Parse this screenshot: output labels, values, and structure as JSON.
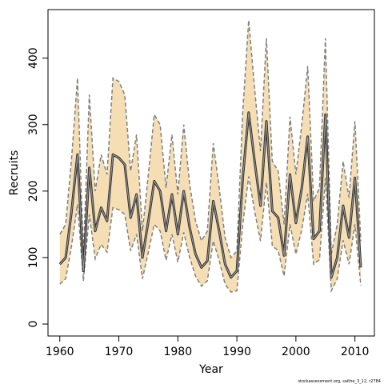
{
  "chart_data": {
    "type": "line",
    "xlabel": "Year",
    "ylabel": "Recruits",
    "footnote": "stockassessment.org, saithe_3_12, r2784",
    "xlim": [
      1958,
      2013.3
    ],
    "ylim": [
      -18,
      473
    ],
    "xticks": [
      1960,
      1970,
      1980,
      1990,
      2000,
      2010
    ],
    "yticks": [
      0,
      100,
      200,
      300,
      400
    ],
    "grid": false,
    "colors": {
      "band": "#f5deb3",
      "band_edge": "#808080",
      "line": "#333333",
      "axis": "#000000"
    },
    "x": [
      1960,
      1961,
      1962,
      1963,
      1964,
      1965,
      1966,
      1967,
      1968,
      1969,
      1970,
      1971,
      1972,
      1973,
      1974,
      1975,
      1976,
      1977,
      1978,
      1979,
      1980,
      1981,
      1982,
      1983,
      1984,
      1985,
      1986,
      1987,
      1988,
      1989,
      1990,
      1991,
      1992,
      1993,
      1994,
      1995,
      1996,
      1997,
      1998,
      1999,
      2000,
      2001,
      2002,
      2003,
      2004,
      2005,
      2006,
      2007,
      2008,
      2009,
      2010,
      2011
    ],
    "series": [
      {
        "values": [
          90,
          100,
          170,
          255,
          80,
          235,
          140,
          175,
          155,
          255,
          250,
          240,
          160,
          195,
          100,
          155,
          215,
          200,
          140,
          195,
          135,
          200,
          145,
          105,
          85,
          95,
          185,
          140,
          90,
          70,
          80,
          220,
          318,
          245,
          178,
          305,
          170,
          160,
          103,
          225,
          152,
          205,
          282,
          128,
          140,
          315,
          70,
          100,
          178,
          130,
          220,
          85
        ]
      },
      {
        "values": [
          135,
          150,
          250,
          370,
          105,
          345,
          200,
          255,
          225,
          370,
          365,
          345,
          230,
          285,
          140,
          225,
          315,
          300,
          205,
          285,
          195,
          300,
          210,
          155,
          125,
          140,
          272,
          205,
          130,
          100,
          110,
          320,
          457,
          355,
          260,
          430,
          245,
          230,
          150,
          312,
          225,
          300,
          388,
          185,
          205,
          430,
          105,
          150,
          245,
          190,
          305,
          125
        ]
      },
      {
        "values": [
          60,
          68,
          118,
          180,
          65,
          165,
          98,
          120,
          108,
          175,
          172,
          165,
          110,
          135,
          68,
          108,
          150,
          140,
          96,
          135,
          93,
          138,
          100,
          72,
          57,
          65,
          125,
          96,
          60,
          48,
          50,
          150,
          222,
          170,
          125,
          213,
          118,
          110,
          72,
          150,
          105,
          142,
          196,
          90,
          97,
          220,
          50,
          68,
          126,
          90,
          150,
          58
        ]
      }
    ]
  }
}
